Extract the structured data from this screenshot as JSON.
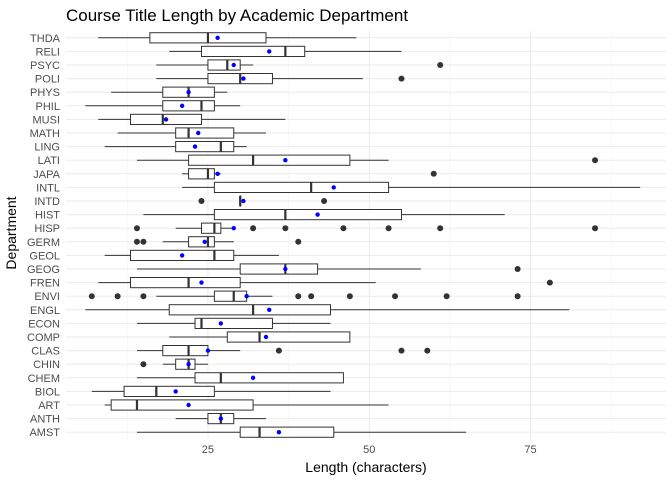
{
  "chart_data": {
    "type": "boxplot",
    "title": "Course Title Length by Academic Department",
    "xlabel": "Length (characters)",
    "ylabel": "Department",
    "xlim": [
      3,
      96
    ],
    "x_ticks": [
      25,
      50,
      75
    ],
    "x_minor_ticks": [
      12.5,
      37.5,
      62.5,
      87.5
    ],
    "grid": true,
    "colors": {
      "box_stroke": "#333333",
      "outlier": "#333333",
      "mean_point": "#0000ff",
      "grid": "#ebebeb",
      "text": "#4d4d4d"
    },
    "categories": [
      "AMST",
      "ANTH",
      "ART",
      "BIOL",
      "CHEM",
      "CHIN",
      "CLAS",
      "COMP",
      "ECON",
      "ENGL",
      "ENVI",
      "FREN",
      "GEOG",
      "GEOL",
      "GERM",
      "HISP",
      "HIST",
      "INTD",
      "INTL",
      "JAPA",
      "LATI",
      "LING",
      "MATH",
      "MUSI",
      "PHIL",
      "PHYS",
      "POLI",
      "PSYC",
      "RELI",
      "THDA"
    ],
    "series": [
      {
        "category": "AMST",
        "whisker_low": 14,
        "q1": 30,
        "median": 33,
        "q3": 44.5,
        "whisker_high": 65,
        "mean": 36,
        "outliers": []
      },
      {
        "category": "ANTH",
        "whisker_low": 20,
        "q1": 25,
        "median": 27,
        "q3": 29,
        "whisker_high": 34,
        "mean": 27,
        "outliers": []
      },
      {
        "category": "ART",
        "whisker_low": 9,
        "q1": 10,
        "median": 14,
        "q3": 32,
        "whisker_high": 53,
        "mean": 22,
        "outliers": []
      },
      {
        "category": "BIOL",
        "whisker_low": 7,
        "q1": 12,
        "median": 17,
        "q3": 26,
        "whisker_high": 44,
        "mean": 20,
        "outliers": []
      },
      {
        "category": "CHEM",
        "whisker_low": 14,
        "q1": 23,
        "median": 27,
        "q3": 46,
        "whisker_high": 46,
        "mean": 32,
        "outliers": []
      },
      {
        "category": "CHIN",
        "whisker_low": 18,
        "q1": 20,
        "median": 22,
        "q3": 23,
        "whisker_high": 25,
        "mean": 22,
        "outliers": [
          15
        ]
      },
      {
        "category": "CLAS",
        "whisker_low": 14,
        "q1": 18,
        "median": 22,
        "q3": 25,
        "whisker_high": 30,
        "mean": 25,
        "outliers": [
          36,
          55,
          59
        ]
      },
      {
        "category": "COMP",
        "whisker_low": 19,
        "q1": 28,
        "median": 33,
        "q3": 47,
        "whisker_high": 47,
        "mean": 34,
        "outliers": []
      },
      {
        "category": "ECON",
        "whisker_low": 14,
        "q1": 23,
        "median": 24,
        "q3": 35,
        "whisker_high": 44,
        "mean": 27,
        "outliers": []
      },
      {
        "category": "ENGL",
        "whisker_low": 6,
        "q1": 19,
        "median": 32,
        "q3": 44,
        "whisker_high": 81,
        "mean": 34.5,
        "outliers": []
      },
      {
        "category": "ENVI",
        "whisker_low": 17,
        "q1": 26,
        "median": 29,
        "q3": 31,
        "whisker_high": 35,
        "mean": 31,
        "outliers": [
          7,
          11,
          15,
          39,
          41,
          47,
          54,
          62,
          73
        ]
      },
      {
        "category": "FREN",
        "whisker_low": 8,
        "q1": 13,
        "median": 22,
        "q3": 30,
        "whisker_high": 51,
        "mean": 24,
        "outliers": [
          78
        ]
      },
      {
        "category": "GEOG",
        "whisker_low": 14,
        "q1": 30,
        "median": 37,
        "q3": 42,
        "whisker_high": 58,
        "mean": 37,
        "outliers": [
          73
        ]
      },
      {
        "category": "GEOL",
        "whisker_low": 9,
        "q1": 13,
        "median": 26,
        "q3": 29,
        "whisker_high": 36,
        "mean": 21,
        "outliers": []
      },
      {
        "category": "GERM",
        "whisker_low": 18,
        "q1": 22,
        "median": 25,
        "q3": 26,
        "whisker_high": 29,
        "mean": 24.5,
        "outliers": [
          14,
          15,
          39
        ]
      },
      {
        "category": "HISP",
        "whisker_low": 20,
        "q1": 24,
        "median": 26,
        "q3": 27,
        "whisker_high": 29,
        "mean": 29,
        "outliers": [
          14,
          32,
          37,
          46,
          53,
          61,
          85
        ]
      },
      {
        "category": "HIST",
        "whisker_low": 15,
        "q1": 26,
        "median": 37,
        "q3": 55,
        "whisker_high": 71,
        "mean": 42,
        "outliers": []
      },
      {
        "category": "INTD",
        "whisker_low": 30,
        "q1": 30,
        "median": 30,
        "q3": 30,
        "whisker_high": 30,
        "mean": 30.5,
        "outliers": [
          24,
          43
        ]
      },
      {
        "category": "INTL",
        "whisker_low": 21,
        "q1": 26,
        "median": 41,
        "q3": 53,
        "whisker_high": 92,
        "mean": 44.5,
        "outliers": []
      },
      {
        "category": "JAPA",
        "whisker_low": 21,
        "q1": 22,
        "median": 25,
        "q3": 26,
        "whisker_high": 27,
        "mean": 26.5,
        "outliers": [
          60
        ]
      },
      {
        "category": "LATI",
        "whisker_low": 14,
        "q1": 22,
        "median": 32,
        "q3": 47,
        "whisker_high": 53,
        "mean": 37,
        "outliers": [
          85
        ]
      },
      {
        "category": "LING",
        "whisker_low": 9,
        "q1": 20,
        "median": 27,
        "q3": 29,
        "whisker_high": 31,
        "mean": 23,
        "outliers": []
      },
      {
        "category": "MATH",
        "whisker_low": 11,
        "q1": 20,
        "median": 22,
        "q3": 29,
        "whisker_high": 34,
        "mean": 23.5,
        "outliers": []
      },
      {
        "category": "MUSI",
        "whisker_low": 8,
        "q1": 13,
        "median": 18,
        "q3": 24,
        "whisker_high": 37,
        "mean": 18.5,
        "outliers": []
      },
      {
        "category": "PHIL",
        "whisker_low": 6,
        "q1": 18,
        "median": 24,
        "q3": 26,
        "whisker_high": 30,
        "mean": 21,
        "outliers": []
      },
      {
        "category": "PHYS",
        "whisker_low": 10,
        "q1": 18,
        "median": 22,
        "q3": 26,
        "whisker_high": 28,
        "mean": 22,
        "outliers": []
      },
      {
        "category": "POLI",
        "whisker_low": 17,
        "q1": 25,
        "median": 30,
        "q3": 35,
        "whisker_high": 49,
        "mean": 30.5,
        "outliers": [
          55
        ]
      },
      {
        "category": "PSYC",
        "whisker_low": 17,
        "q1": 25,
        "median": 28,
        "q3": 30,
        "whisker_high": 32,
        "mean": 29,
        "outliers": [
          61
        ]
      },
      {
        "category": "RELI",
        "whisker_low": 19,
        "q1": 24,
        "median": 37,
        "q3": 40,
        "whisker_high": 55,
        "mean": 34.5,
        "outliers": []
      },
      {
        "category": "THDA",
        "whisker_low": 8,
        "q1": 16,
        "median": 25,
        "q3": 34,
        "whisker_high": 48,
        "mean": 26.5,
        "outliers": []
      }
    ]
  }
}
